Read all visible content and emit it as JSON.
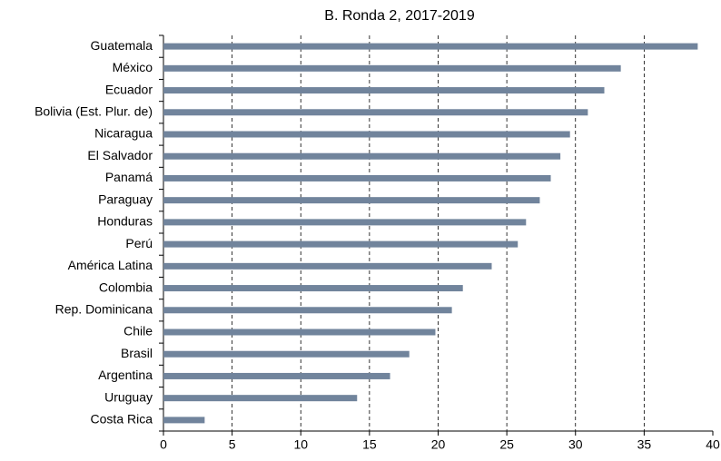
{
  "chart_data": {
    "type": "bar",
    "orientation": "horizontal",
    "title": "B. Ronda 2, 2017-2019",
    "categories": [
      "Guatemala",
      "México",
      "Ecuador",
      "Bolivia (Est. Plur. de)",
      "Nicaragua",
      "El Salvador",
      "Panamá",
      "Paraguay",
      "Honduras",
      "Perú",
      "América Latina",
      "Colombia",
      "Rep. Dominicana",
      "Chile",
      "Brasil",
      "Argentina",
      "Uruguay",
      "Costa Rica"
    ],
    "values": [
      38.9,
      33.3,
      32.1,
      30.9,
      29.6,
      28.9,
      28.2,
      27.4,
      26.4,
      25.8,
      23.9,
      21.8,
      21.0,
      19.8,
      17.9,
      16.5,
      14.1,
      3.0
    ],
    "color": "#71849c",
    "xlim": [
      0,
      40
    ],
    "xticks": [
      0,
      5,
      10,
      15,
      20,
      25,
      30,
      35,
      40
    ],
    "grid": true
  }
}
